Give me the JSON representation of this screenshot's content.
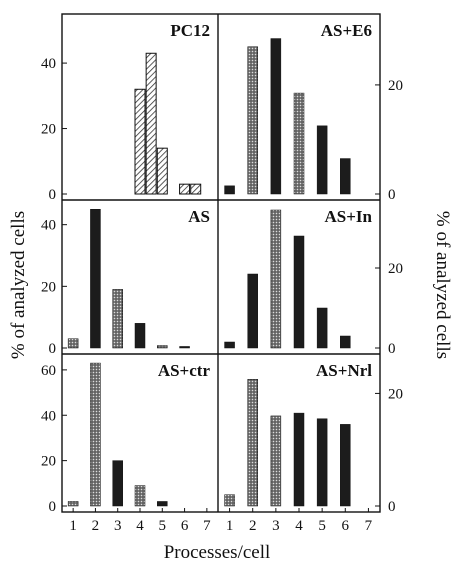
{
  "chart_data": {
    "type": "bar",
    "x": [
      1,
      2,
      3,
      4,
      5,
      6,
      7
    ],
    "xlabel": "Processes/cell",
    "ylabel_left": "% of analyzed cells",
    "ylabel_right": "% of analyzed cells",
    "grid": false,
    "colors": {
      "hatched": "#9a9a9a",
      "solid": "#1c1c1c",
      "stipple": "#8a8a8a",
      "axis": "#111111"
    },
    "panels": [
      {
        "title": "PC12",
        "column": "left",
        "row": 0,
        "style": "hatched",
        "ylim": [
          0,
          55
        ],
        "yticks": [
          0,
          20,
          40
        ],
        "ytick_labels": [
          "0",
          "20",
          "40"
        ],
        "x": [
          4,
          4.5,
          5,
          6,
          6.5
        ],
        "values": [
          32,
          43,
          14,
          3,
          3
        ]
      },
      {
        "title": "AS+E6",
        "column": "right",
        "row": 0,
        "style": "mixed",
        "ylim": [
          0,
          33
        ],
        "yticks": [
          0,
          20
        ],
        "ytick_labels": [
          "0",
          "20"
        ],
        "x": [
          1,
          2,
          3,
          4,
          5,
          6
        ],
        "values": [
          1.5,
          27,
          28.5,
          18.5,
          12.5,
          6.5
        ],
        "bar_styles": [
          "solid",
          "stipple",
          "solid",
          "stipple",
          "solid",
          "solid"
        ]
      },
      {
        "title": "AS",
        "column": "left",
        "row": 1,
        "style": "mixed",
        "ylim": [
          0,
          48
        ],
        "yticks": [
          0,
          20,
          40
        ],
        "ytick_labels": [
          "0",
          "20",
          "40"
        ],
        "x": [
          1,
          2,
          3,
          4,
          5,
          6
        ],
        "values": [
          3,
          45,
          19,
          8,
          0.8,
          0.5
        ],
        "bar_styles": [
          "stipple",
          "solid",
          "stipple",
          "solid",
          "stipple",
          "solid"
        ]
      },
      {
        "title": "AS+In",
        "column": "right",
        "row": 1,
        "style": "mixed",
        "ylim": [
          0,
          37
        ],
        "yticks": [
          0,
          20
        ],
        "ytick_labels": [
          "0",
          "20"
        ],
        "x": [
          1,
          2,
          3,
          4,
          5,
          6
        ],
        "values": [
          1.5,
          18.5,
          34.5,
          28,
          10,
          3
        ],
        "bar_styles": [
          "solid",
          "solid",
          "stipple",
          "solid",
          "solid",
          "solid"
        ]
      },
      {
        "title": "AS+ctr",
        "column": "left",
        "row": 2,
        "style": "mixed",
        "ylim": [
          0,
          67
        ],
        "yticks": [
          0,
          20,
          40,
          60
        ],
        "ytick_labels": [
          "0",
          "20",
          "40",
          "60"
        ],
        "x": [
          1,
          2,
          3,
          4,
          5
        ],
        "values": [
          2,
          63,
          20,
          9,
          2
        ],
        "bar_styles": [
          "stipple",
          "stipple",
          "solid",
          "stipple",
          "solid"
        ]
      },
      {
        "title": "AS+Nrl",
        "column": "right",
        "row": 2,
        "style": "mixed",
        "ylim": [
          0,
          27
        ],
        "yticks": [
          0,
          20
        ],
        "ytick_labels": [
          "0",
          "20"
        ],
        "x": [
          1,
          2,
          3,
          4,
          5,
          6
        ],
        "values": [
          2,
          22.5,
          16,
          16.5,
          15.5,
          14.5
        ],
        "bar_styles": [
          "stipple",
          "stipple",
          "stipple",
          "solid",
          "solid",
          "solid"
        ]
      }
    ]
  }
}
